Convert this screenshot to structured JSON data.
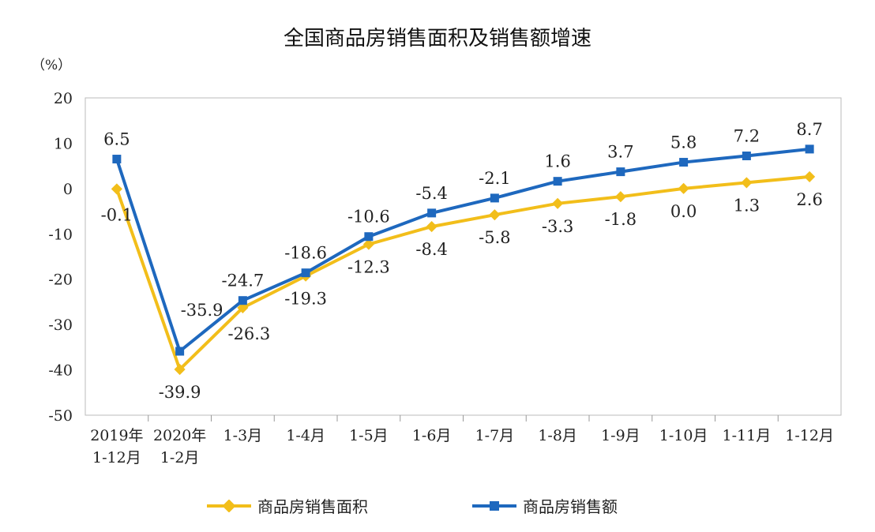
{
  "chart_data": {
    "type": "line",
    "title": "全国商品房销售面积及销售额增速",
    "ylabel": "（%）",
    "ylim": [
      -50,
      20
    ],
    "yticks": [
      20,
      10,
      0,
      -10,
      -20,
      -30,
      -40,
      -50
    ],
    "grid": false,
    "legend": "bottom",
    "categories": [
      [
        "2019年",
        "1-12月"
      ],
      [
        "2020年",
        "1-2月"
      ],
      [
        "1-3月"
      ],
      [
        "1-4月"
      ],
      [
        "1-5月"
      ],
      [
        "1-6月"
      ],
      [
        "1-7月"
      ],
      [
        "1-8月"
      ],
      [
        "1-9月"
      ],
      [
        "1-10月"
      ],
      [
        "1-11月"
      ],
      [
        "1-12月"
      ]
    ],
    "series": [
      {
        "name": "商品房销售面积",
        "color": "#F2BE1A",
        "marker": "diamond",
        "values": [
          -0.1,
          -39.9,
          -26.3,
          -19.3,
          -12.3,
          -8.4,
          -5.8,
          -3.3,
          -1.8,
          0.0,
          1.3,
          2.6
        ],
        "labels": [
          "-0.1",
          "-39.9",
          "-26.3",
          "-19.3",
          "-12.3",
          "-8.4",
          "-5.8",
          "-3.3",
          "-1.8",
          "0.0",
          "1.3",
          "2.6"
        ]
      },
      {
        "name": "商品房销售额",
        "color": "#1E68BE",
        "marker": "square",
        "values": [
          6.5,
          -35.9,
          -24.7,
          -18.6,
          -10.6,
          -5.4,
          -2.1,
          1.6,
          3.7,
          5.8,
          7.2,
          8.7
        ],
        "labels": [
          "6.5",
          "-35.9",
          "-24.7",
          "-18.6",
          "-10.6",
          "-5.4",
          "-2.1",
          "1.6",
          "3.7",
          "5.8",
          "7.2",
          "8.7"
        ]
      }
    ]
  }
}
